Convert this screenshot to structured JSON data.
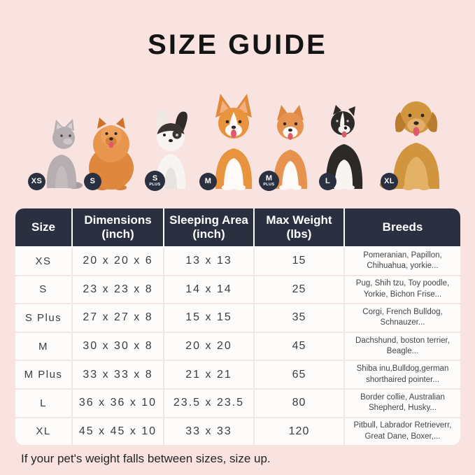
{
  "page": {
    "title": "SIZE GUIDE",
    "footnote": "If your pet's weight falls between sizes, size up."
  },
  "colors": {
    "background": "#f8e3e1",
    "panel": "#ffffff",
    "header_dark": "#2b3040",
    "badge_dark": "#2b3040",
    "divider": "#f3e7e5",
    "title_text": "#141414"
  },
  "animals": [
    {
      "icon": "cat-icon",
      "badge": "XS",
      "badge_sub": ""
    },
    {
      "icon": "pomeranian-icon",
      "badge": "S",
      "badge_sub": ""
    },
    {
      "icon": "french-bulldog-icon",
      "badge": "S",
      "badge_sub": "PLUS"
    },
    {
      "icon": "corgi-icon",
      "badge": "M",
      "badge_sub": ""
    },
    {
      "icon": "shiba-inu-icon",
      "badge": "M",
      "badge_sub": "PLUS"
    },
    {
      "icon": "border-collie-icon",
      "badge": "L",
      "badge_sub": ""
    },
    {
      "icon": "golden-retriever-icon",
      "badge": "XL",
      "badge_sub": ""
    }
  ],
  "table": {
    "headers": [
      {
        "line1": "Size",
        "line2": ""
      },
      {
        "line1": "Dimensions",
        "line2": "(inch)"
      },
      {
        "line1": "Sleeping Area",
        "line2": "(inch)"
      },
      {
        "line1": "Max Weight",
        "line2": "(lbs)"
      },
      {
        "line1": "Breeds",
        "line2": ""
      }
    ],
    "rows": [
      {
        "size": "XS",
        "dimensions": "20 x 20 x 6",
        "sleeping_area": "13 x 13",
        "max_weight": "15",
        "breeds": "Pomeranian, Papillon, Chihuahua, yorkie..."
      },
      {
        "size": "S",
        "dimensions": "23 x 23 x 8",
        "sleeping_area": "14 x 14",
        "max_weight": "25",
        "breeds": "Pug, Shih tzu, Toy poodle, Yorkie, Bichon Frise..."
      },
      {
        "size": "S Plus",
        "dimensions": "27 x 27 x 8",
        "sleeping_area": "15 x 15",
        "max_weight": "35",
        "breeds": "Corgi, French Bulldog, Schnauzer..."
      },
      {
        "size": "M",
        "dimensions": "30 x 30 x 8",
        "sleeping_area": "20 x 20",
        "max_weight": "45",
        "breeds": "Dachshund, boston terrier, Beagle..."
      },
      {
        "size": "M Plus",
        "dimensions": "33 x 33 x 8",
        "sleeping_area": "21 x 21",
        "max_weight": "65",
        "breeds": "Shiba inu,Bulldog,german shorthaired pointer..."
      },
      {
        "size": "L",
        "dimensions": "36 x 36 x 10",
        "sleeping_area": "23.5 x 23.5",
        "max_weight": "80",
        "breeds": "Border collie, Australian Shepherd, Husky..."
      },
      {
        "size": "XL",
        "dimensions": "45 x 45 x 10",
        "sleeping_area": "33 x 33",
        "max_weight": "120",
        "breeds": "Pitbull, Labrador Retrieverr, Great Dane, Boxer,..."
      }
    ]
  }
}
